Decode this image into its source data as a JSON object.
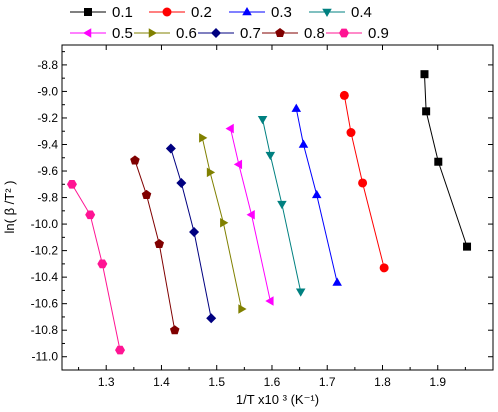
{
  "chart_data": {
    "type": "scatter",
    "title": "",
    "xlabel": "1/T x10 ³ (K⁻¹)",
    "ylabel": "ln( β /T² )",
    "xlim": [
      1.22,
      2.0
    ],
    "ylim": [
      -11.1,
      -8.65
    ],
    "xticks": [
      1.3,
      1.4,
      1.5,
      1.6,
      1.7,
      1.8,
      1.9
    ],
    "yticks": [
      -8.8,
      -9.0,
      -9.2,
      -9.4,
      -9.6,
      -9.8,
      -10.0,
      -10.2,
      -10.4,
      -10.6,
      -10.8,
      -11.0
    ],
    "grid": false,
    "legend_position": "top",
    "series": [
      {
        "name": "0.1",
        "color": "#000000",
        "marker": "square",
        "x": [
          1.876,
          1.879,
          1.901,
          1.953
        ],
        "y": [
          -8.87,
          -9.15,
          -9.53,
          -10.17
        ]
      },
      {
        "name": "0.2",
        "color": "#ff0000",
        "marker": "circle",
        "x": [
          1.731,
          1.743,
          1.764,
          1.803
        ],
        "y": [
          -9.03,
          -9.31,
          -9.69,
          -10.33
        ]
      },
      {
        "name": "0.3",
        "color": "#0000ff",
        "marker": "triangle-up",
        "x": [
          1.644,
          1.657,
          1.681,
          1.718
        ],
        "y": [
          -9.13,
          -9.4,
          -9.78,
          -10.44
        ]
      },
      {
        "name": "0.4",
        "color": "#008080",
        "marker": "triangle-down",
        "x": [
          1.583,
          1.597,
          1.618,
          1.652
        ],
        "y": [
          -9.21,
          -9.48,
          -9.85,
          -10.51
        ]
      },
      {
        "name": "0.5",
        "color": "#ff00ff",
        "marker": "triangle-left",
        "x": [
          1.525,
          1.54,
          1.563,
          1.597
        ],
        "y": [
          -9.28,
          -9.55,
          -9.93,
          -10.58
        ]
      },
      {
        "name": "0.6",
        "color": "#808000",
        "marker": "triangle-right",
        "x": [
          1.474,
          1.488,
          1.512,
          1.545
        ],
        "y": [
          -9.35,
          -9.61,
          -9.99,
          -10.64
        ]
      },
      {
        "name": "0.7",
        "color": "#000080",
        "marker": "diamond",
        "x": [
          1.417,
          1.436,
          1.459,
          1.49
        ],
        "y": [
          -9.43,
          -9.69,
          -10.06,
          -10.71
        ]
      },
      {
        "name": "0.8",
        "color": "#800000",
        "marker": "pentagon",
        "x": [
          1.352,
          1.373,
          1.396,
          1.424
        ],
        "y": [
          -9.52,
          -9.78,
          -10.15,
          -10.8
        ]
      },
      {
        "name": "0.9",
        "color": "#ff1493",
        "marker": "hexagon",
        "x": [
          1.238,
          1.271,
          1.293,
          1.325
        ],
        "y": [
          -9.7,
          -9.93,
          -10.3,
          -10.95
        ]
      }
    ]
  }
}
